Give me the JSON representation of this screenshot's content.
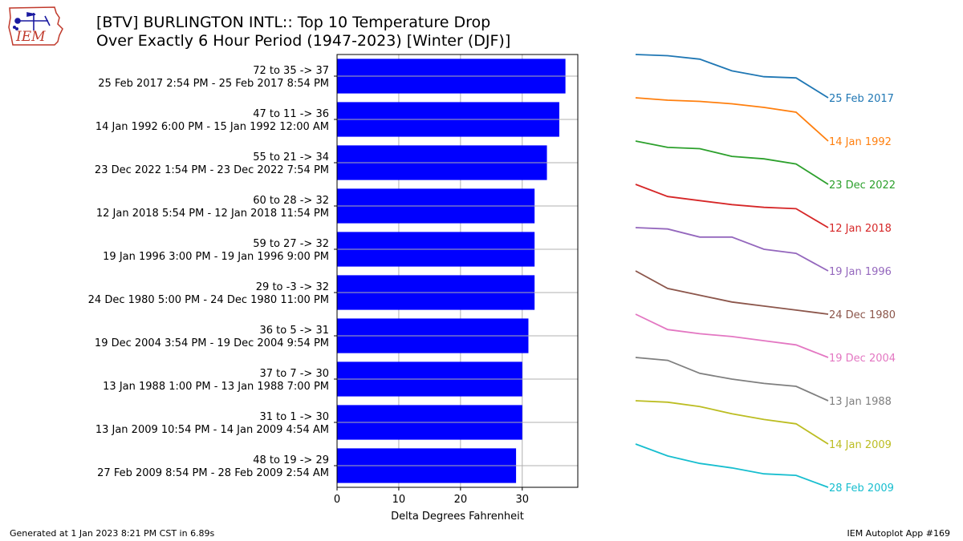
{
  "header": {
    "logo_text": "IEM",
    "title_line1": "[BTV] BURLINGTON INTL:: Top 10 Temperature Drop",
    "title_line2": "Over Exactly 6 Hour Period (1947-2023) [Winter (DJF)]"
  },
  "footer": {
    "generated": "Generated at 1 Jan 2023 8:21 PM CST in 6.89s",
    "app": "IEM Autoplot App #169"
  },
  "colors": {
    "bar": "#0000ff",
    "grid": "#b0b0b0",
    "series": [
      "#1f77b4",
      "#ff7f0e",
      "#2ca02c",
      "#d62728",
      "#9467bd",
      "#8c564b",
      "#e377c2",
      "#7f7f7f",
      "#bcbd22",
      "#17becf"
    ]
  },
  "chart_data": [
    {
      "type": "bar",
      "orientation": "horizontal",
      "xlabel": "Delta Degrees Fahrenheit",
      "xlim": [
        0,
        39
      ],
      "xticks": [
        0,
        10,
        20,
        30
      ],
      "grid": true,
      "categories": [
        {
          "line1": "72 to 35 -> 37",
          "line2": "25 Feb 2017 2:54 PM - 25 Feb 2017 8:54 PM"
        },
        {
          "line1": "47 to 11 -> 36",
          "line2": "14 Jan 1992 6:00 PM - 15 Jan 1992 12:00 AM"
        },
        {
          "line1": "55 to 21 -> 34",
          "line2": "23 Dec 2022 1:54 PM - 23 Dec 2022 7:54 PM"
        },
        {
          "line1": "60 to 28 -> 32",
          "line2": "12 Jan 2018 5:54 PM - 12 Jan 2018 11:54 PM"
        },
        {
          "line1": "59 to 27 -> 32",
          "line2": "19 Jan 1996 3:00 PM - 19 Jan 1996 9:00 PM"
        },
        {
          "line1": "29 to -3 -> 32",
          "line2": "24 Dec 1980 5:00 PM - 24 Dec 1980 11:00 PM"
        },
        {
          "line1": "36 to 5 -> 31",
          "line2": "19 Dec 2004 3:54 PM - 19 Dec 2004 9:54 PM"
        },
        {
          "line1": "37 to 7 -> 30",
          "line2": "13 Jan 1988 1:00 PM - 13 Jan 1988 7:00 PM"
        },
        {
          "line1": "31 to 1 -> 30",
          "line2": "13 Jan 2009 10:54 PM - 14 Jan 2009 4:54 AM"
        },
        {
          "line1": "48 to 19 -> 29",
          "line2": "27 Feb 2009 8:54 PM - 28 Feb 2009 2:54 AM"
        }
      ],
      "values": [
        37,
        36,
        34,
        32,
        32,
        32,
        31,
        30,
        30,
        29
      ]
    },
    {
      "type": "line",
      "description_free": true,
      "series": [
        {
          "name": "25 Feb 2017",
          "values": [
            72,
            71,
            68,
            58,
            53,
            52,
            35
          ]
        },
        {
          "name": "14 Jan 1992",
          "values": [
            47,
            45,
            44,
            42,
            39,
            35,
            11
          ]
        },
        {
          "name": "23 Dec 2022",
          "values": [
            55,
            50,
            49,
            43,
            41,
            37,
            21
          ]
        },
        {
          "name": "12 Jan 2018",
          "values": [
            60,
            51,
            48,
            45,
            43,
            42,
            28
          ]
        },
        {
          "name": "19 Jan 1996",
          "values": [
            59,
            58,
            52,
            52,
            43,
            40,
            27
          ]
        },
        {
          "name": "24 Dec 1980",
          "values": [
            29,
            16,
            11,
            6,
            3,
            0,
            -3
          ]
        },
        {
          "name": "19 Dec 2004",
          "values": [
            36,
            25,
            22,
            20,
            17,
            14,
            5
          ]
        },
        {
          "name": "13 Jan 1988",
          "values": [
            37,
            35,
            26,
            22,
            19,
            17,
            7
          ]
        },
        {
          "name": "14 Jan 2009",
          "values": [
            31,
            30,
            27,
            22,
            18,
            15,
            1
          ]
        },
        {
          "name": "28 Feb 2009",
          "values": [
            48,
            40,
            35,
            32,
            28,
            27,
            19
          ]
        }
      ]
    }
  ]
}
